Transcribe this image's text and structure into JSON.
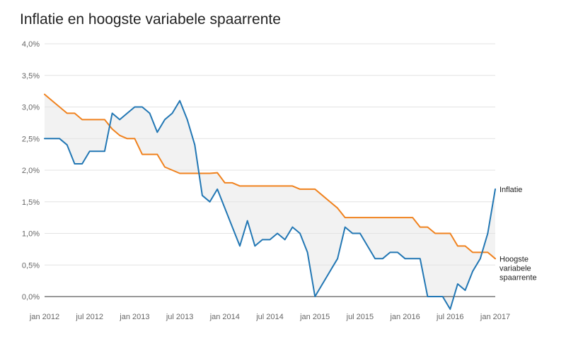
{
  "chart_data": {
    "type": "line",
    "title": "Inflatie en hoogste variabele spaarrente",
    "xlabel": "",
    "ylabel": "",
    "ylim": [
      0.0,
      4.0
    ],
    "xlim": [
      "2012-01",
      "2017-01"
    ],
    "grid": true,
    "legend": "inline labels at line ends (right)",
    "fill_between": true,
    "y_ticks": [
      "0,0%",
      "0,5%",
      "1,0%",
      "1,5%",
      "2,0%",
      "2,5%",
      "3,0%",
      "3,5%",
      "4,0%"
    ],
    "x_ticks": [
      {
        "date": "2012-01",
        "label": "jan 2012"
      },
      {
        "date": "2012-07",
        "label": "jul 2012"
      },
      {
        "date": "2013-01",
        "label": "jan 2013"
      },
      {
        "date": "2013-07",
        "label": "jul 2013"
      },
      {
        "date": "2014-01",
        "label": "jan 2014"
      },
      {
        "date": "2014-07",
        "label": "jul 2014"
      },
      {
        "date": "2015-01",
        "label": "jan 2015"
      },
      {
        "date": "2015-07",
        "label": "jul 2015"
      },
      {
        "date": "2016-01",
        "label": "jan 2016"
      },
      {
        "date": "2016-07",
        "label": "jul 2016"
      },
      {
        "date": "2017-01",
        "label": "jan 2017"
      }
    ],
    "series": [
      {
        "name": "Inflatie",
        "color": "#2277b4",
        "points": [
          [
            "2012-01",
            2.5
          ],
          [
            "2012-02",
            2.5
          ],
          [
            "2012-03",
            2.5
          ],
          [
            "2012-04",
            2.4
          ],
          [
            "2012-05",
            2.1
          ],
          [
            "2012-06",
            2.1
          ],
          [
            "2012-07",
            2.3
          ],
          [
            "2012-08",
            2.3
          ],
          [
            "2012-09",
            2.3
          ],
          [
            "2012-10",
            2.9
          ],
          [
            "2012-11",
            2.8
          ],
          [
            "2012-12",
            2.9
          ],
          [
            "2013-01",
            3.0
          ],
          [
            "2013-02",
            3.0
          ],
          [
            "2013-03",
            2.9
          ],
          [
            "2013-04",
            2.6
          ],
          [
            "2013-05",
            2.8
          ],
          [
            "2013-06",
            2.9
          ],
          [
            "2013-07",
            3.1
          ],
          [
            "2013-08",
            2.8
          ],
          [
            "2013-09",
            2.4
          ],
          [
            "2013-10",
            1.6
          ],
          [
            "2013-11",
            1.5
          ],
          [
            "2013-12",
            1.7
          ],
          [
            "2014-01",
            1.4
          ],
          [
            "2014-02",
            1.1
          ],
          [
            "2014-03",
            0.8
          ],
          [
            "2014-04",
            1.2
          ],
          [
            "2014-05",
            0.8
          ],
          [
            "2014-06",
            0.9
          ],
          [
            "2014-07",
            0.9
          ],
          [
            "2014-08",
            1.0
          ],
          [
            "2014-09",
            0.9
          ],
          [
            "2014-10",
            1.1
          ],
          [
            "2014-11",
            1.0
          ],
          [
            "2014-12",
            0.7
          ],
          [
            "2015-01",
            0.0
          ],
          [
            "2015-02",
            0.2
          ],
          [
            "2015-03",
            0.4
          ],
          [
            "2015-04",
            0.6
          ],
          [
            "2015-05",
            1.1
          ],
          [
            "2015-06",
            1.0
          ],
          [
            "2015-07",
            1.0
          ],
          [
            "2015-08",
            0.8
          ],
          [
            "2015-09",
            0.6
          ],
          [
            "2015-10",
            0.6
          ],
          [
            "2015-11",
            0.7
          ],
          [
            "2015-12",
            0.7
          ],
          [
            "2016-01",
            0.6
          ],
          [
            "2016-02",
            0.6
          ],
          [
            "2016-03",
            0.6
          ],
          [
            "2016-04",
            0.0
          ],
          [
            "2016-05",
            0.0
          ],
          [
            "2016-06",
            0.0
          ],
          [
            "2016-07",
            -0.2
          ],
          [
            "2016-08",
            0.2
          ],
          [
            "2016-09",
            0.1
          ],
          [
            "2016-10",
            0.4
          ],
          [
            "2016-11",
            0.6
          ],
          [
            "2016-12",
            1.0
          ],
          [
            "2017-01",
            1.7
          ]
        ]
      },
      {
        "name": "Hoogste variabele spaarrente",
        "color": "#f0821e",
        "points": [
          [
            "2012-01",
            3.2
          ],
          [
            "2012-02",
            3.1
          ],
          [
            "2012-03",
            3.0
          ],
          [
            "2012-04",
            2.9
          ],
          [
            "2012-05",
            2.9
          ],
          [
            "2012-06",
            2.8
          ],
          [
            "2012-07",
            2.8
          ],
          [
            "2012-08",
            2.8
          ],
          [
            "2012-09",
            2.8
          ],
          [
            "2012-10",
            2.65
          ],
          [
            "2012-11",
            2.55
          ],
          [
            "2012-12",
            2.5
          ],
          [
            "2013-01",
            2.5
          ],
          [
            "2013-02",
            2.25
          ],
          [
            "2013-03",
            2.25
          ],
          [
            "2013-04",
            2.25
          ],
          [
            "2013-05",
            2.05
          ],
          [
            "2013-06",
            2.0
          ],
          [
            "2013-07",
            1.95
          ],
          [
            "2013-08",
            1.95
          ],
          [
            "2013-09",
            1.95
          ],
          [
            "2013-10",
            1.95
          ],
          [
            "2013-11",
            1.95
          ],
          [
            "2013-12",
            1.96
          ],
          [
            "2014-01",
            1.8
          ],
          [
            "2014-02",
            1.8
          ],
          [
            "2014-03",
            1.75
          ],
          [
            "2014-04",
            1.75
          ],
          [
            "2014-05",
            1.75
          ],
          [
            "2014-06",
            1.75
          ],
          [
            "2014-07",
            1.75
          ],
          [
            "2014-08",
            1.75
          ],
          [
            "2014-09",
            1.75
          ],
          [
            "2014-10",
            1.75
          ],
          [
            "2014-11",
            1.7
          ],
          [
            "2014-12",
            1.7
          ],
          [
            "2015-01",
            1.7
          ],
          [
            "2015-02",
            1.6
          ],
          [
            "2015-03",
            1.5
          ],
          [
            "2015-04",
            1.4
          ],
          [
            "2015-05",
            1.25
          ],
          [
            "2015-06",
            1.25
          ],
          [
            "2015-07",
            1.25
          ],
          [
            "2015-08",
            1.25
          ],
          [
            "2015-09",
            1.25
          ],
          [
            "2015-10",
            1.25
          ],
          [
            "2015-11",
            1.25
          ],
          [
            "2015-12",
            1.25
          ],
          [
            "2016-01",
            1.25
          ],
          [
            "2016-02",
            1.25
          ],
          [
            "2016-03",
            1.1
          ],
          [
            "2016-04",
            1.1
          ],
          [
            "2016-05",
            1.0
          ],
          [
            "2016-06",
            1.0
          ],
          [
            "2016-07",
            1.0
          ],
          [
            "2016-08",
            0.8
          ],
          [
            "2016-09",
            0.8
          ],
          [
            "2016-10",
            0.7
          ],
          [
            "2016-11",
            0.7
          ],
          [
            "2016-12",
            0.7
          ],
          [
            "2017-01",
            0.6
          ]
        ]
      }
    ],
    "series_labels": [
      {
        "series": "Inflatie",
        "lines": [
          "Inflatie"
        ]
      },
      {
        "series": "Hoogste variabele spaarrente",
        "lines": [
          "Hoogste",
          "variabele",
          "spaarrente"
        ]
      }
    ],
    "fill_color": "#f2f2f2"
  }
}
